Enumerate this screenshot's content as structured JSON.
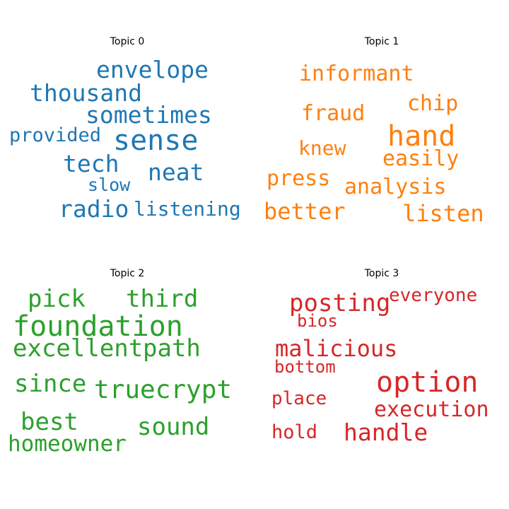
{
  "topics": [
    {
      "title": "Topic 0",
      "color": "#1f77b4",
      "words": [
        "envelope",
        "thousand",
        "sometimes",
        "sense",
        "provided",
        "tech",
        "neat",
        "slow",
        "radio",
        "listening"
      ]
    },
    {
      "title": "Topic 1",
      "color": "#ff7f0e",
      "words": [
        "informant",
        "chip",
        "fraud",
        "hand",
        "knew",
        "easily",
        "press",
        "analysis",
        "better",
        "listen"
      ]
    },
    {
      "title": "Topic 2",
      "color": "#2ca02c",
      "words": [
        "pick",
        "third",
        "foundation",
        "excellent",
        "path",
        "since",
        "truecrypt",
        "best",
        "sound",
        "homeowner"
      ]
    },
    {
      "title": "Topic 3",
      "color": "#d62728",
      "words": [
        "posting",
        "everyone",
        "bios",
        "malicious",
        "bottom",
        "option",
        "place",
        "execution",
        "hold",
        "handle"
      ]
    }
  ]
}
